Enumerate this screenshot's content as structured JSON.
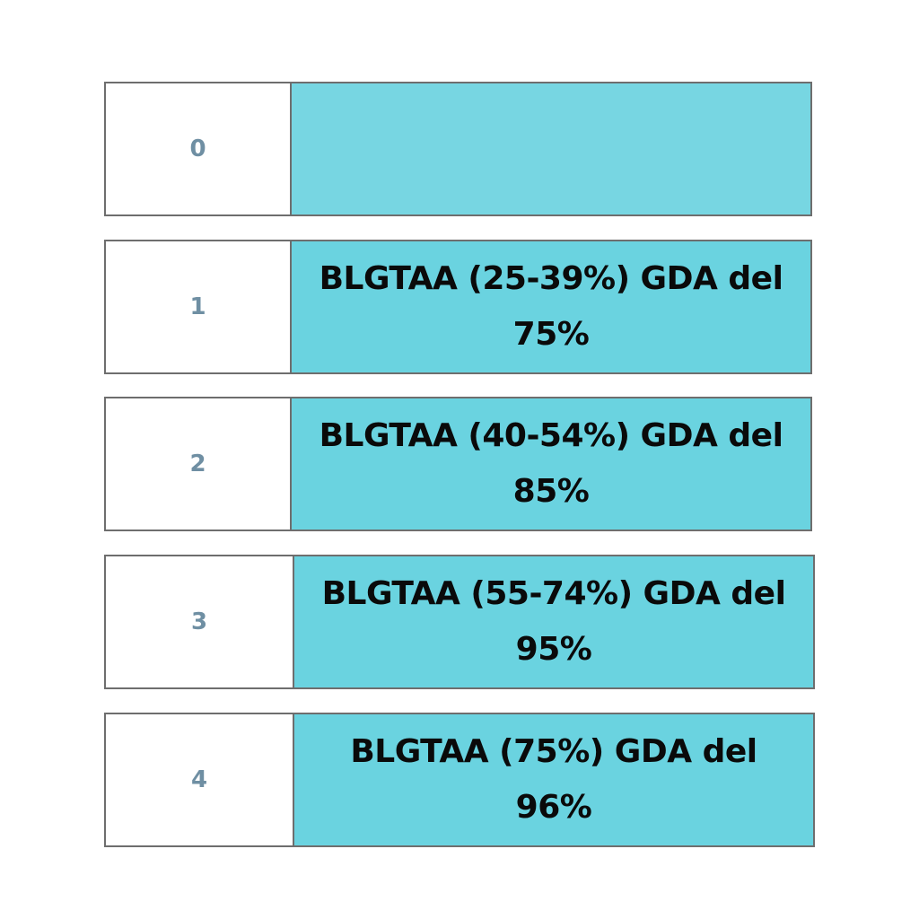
{
  "rows": [
    {
      "number": "0",
      "text": "",
      "color": "#77d6e2"
    },
    {
      "number": "1",
      "text": "BLGTAA (25-39%) GDA del 75%",
      "color": "#6ad3e0"
    },
    {
      "number": "2",
      "text": "BLGTAA (40-54%) GDA del 85%",
      "color": "#6ad3e0"
    },
    {
      "number": "3",
      "text": "BLGTAA (55-74%) GDA del 95%",
      "color": "#6ad3e0"
    },
    {
      "number": "4",
      "text": "BLGTAA (75%) GDA del 96%",
      "color": "#6ad3e0"
    }
  ]
}
